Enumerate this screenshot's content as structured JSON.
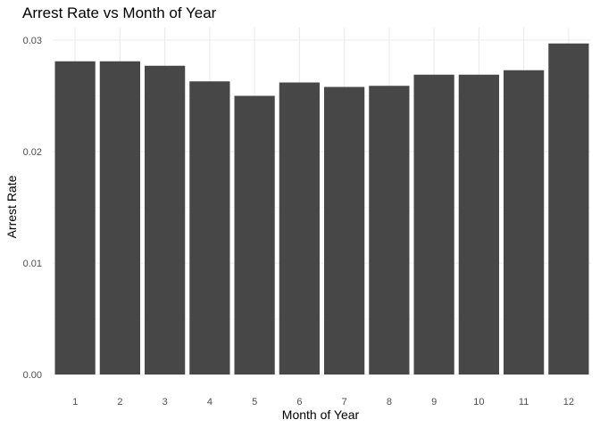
{
  "chart_data": {
    "type": "bar",
    "title": "Arrest Rate vs Month of Year",
    "xlabel": "Month of Year",
    "ylabel": "Arrest Rate",
    "categories": [
      "1",
      "2",
      "3",
      "4",
      "5",
      "6",
      "7",
      "8",
      "9",
      "10",
      "11",
      "12"
    ],
    "values": [
      0.0281,
      0.0281,
      0.0277,
      0.0263,
      0.025,
      0.0262,
      0.0258,
      0.0259,
      0.0269,
      0.0269,
      0.0273,
      0.0297
    ],
    "ylim": [
      0,
      0.03
    ],
    "yticks": [
      0,
      0.01,
      0.02,
      0.03
    ],
    "ytick_labels": [
      "0.00",
      "0.01",
      "0.02",
      "0.03"
    ],
    "grid": true,
    "legend": "none",
    "bar_color": "#474747",
    "theme": "minimal"
  }
}
